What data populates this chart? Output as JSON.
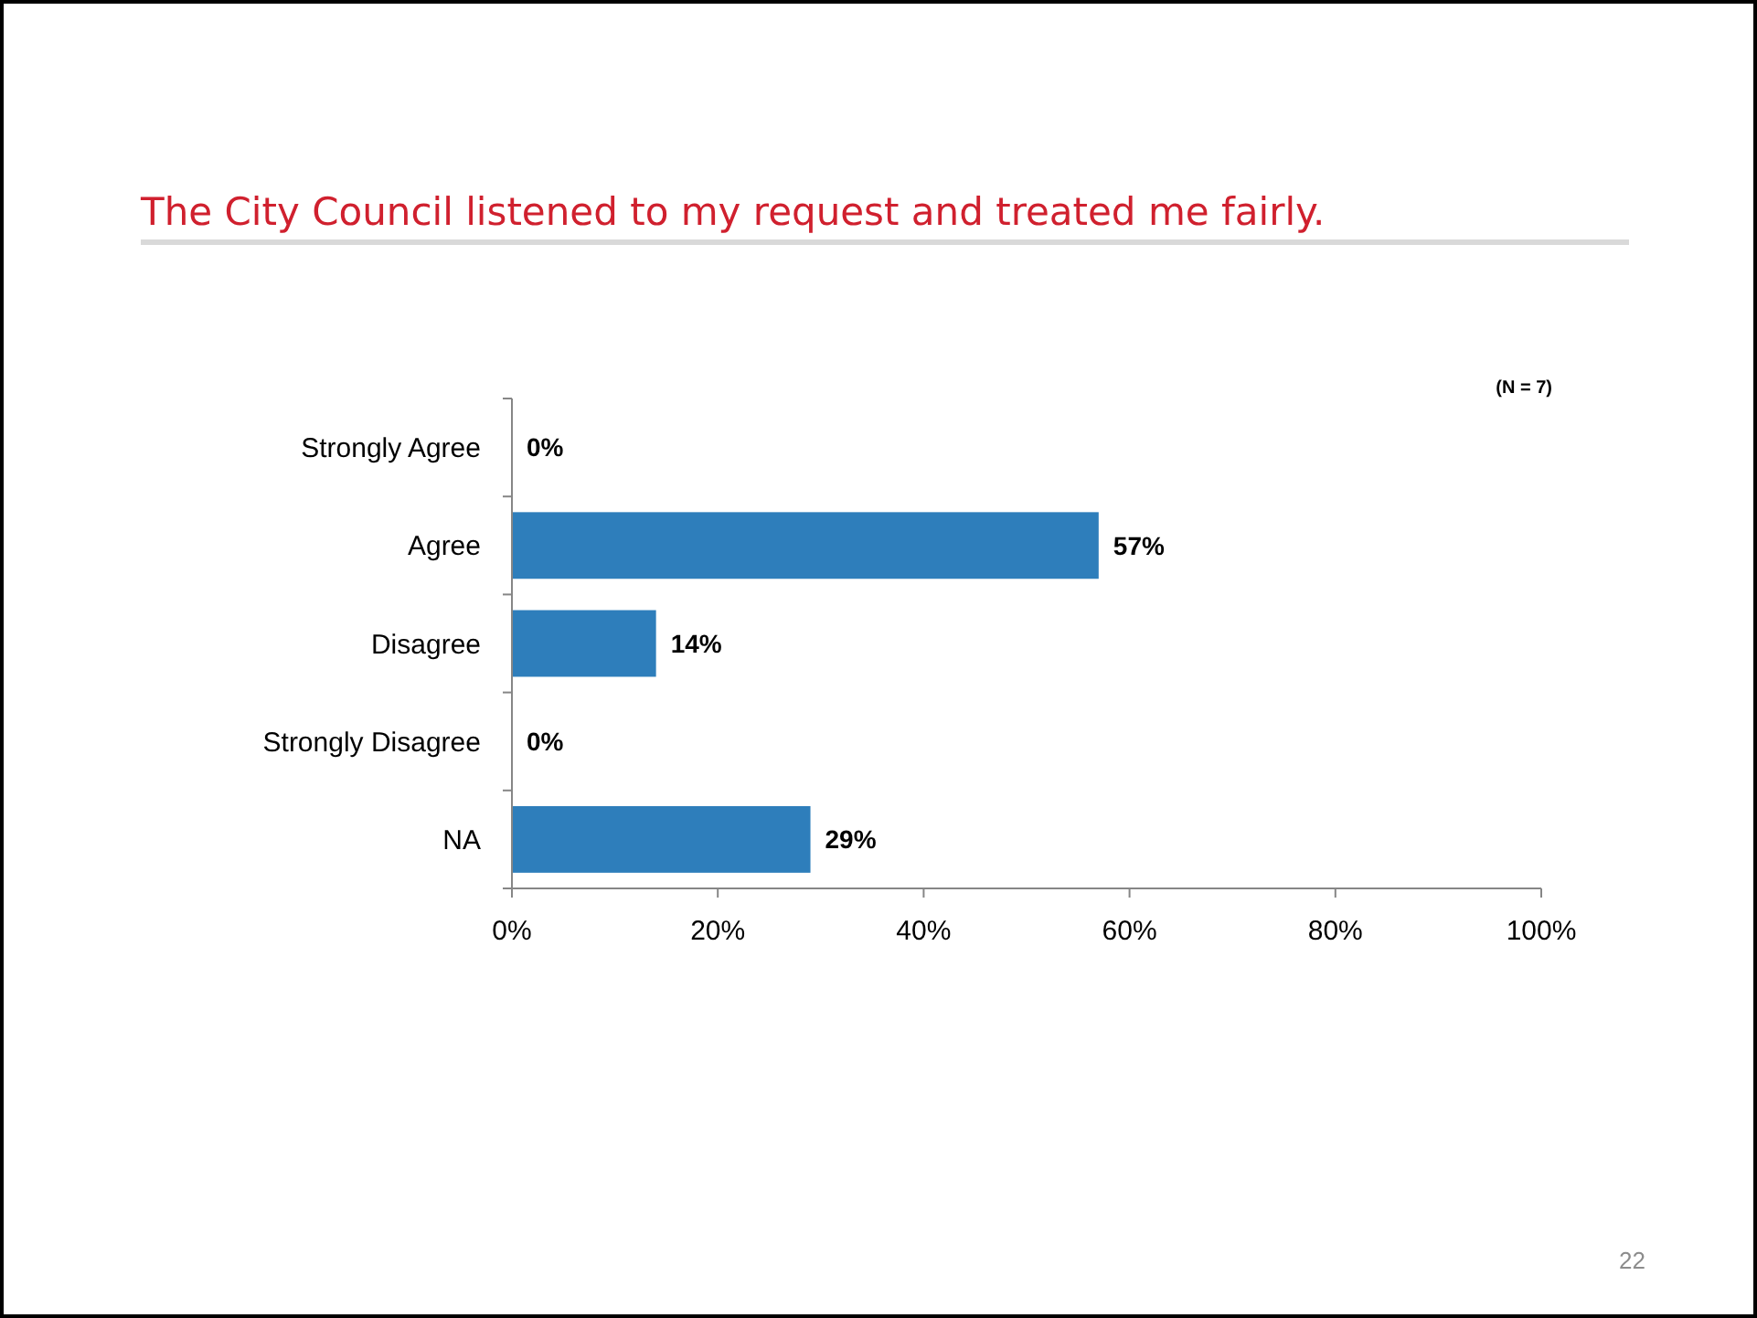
{
  "chart_data": {
    "type": "bar",
    "orientation": "horizontal",
    "title": "The City Council listened to my request and treated me fairly.",
    "categories": [
      "Strongly Agree",
      "Agree",
      "Disagree",
      "Strongly Disagree",
      "NA"
    ],
    "values": [
      0,
      57,
      14,
      0,
      29
    ],
    "color": "#2e7ebb",
    "value_labels": [
      "0%",
      "57%",
      "14%",
      "0%",
      "29%"
    ],
    "xlim": [
      0,
      100
    ],
    "xticks": [
      {
        "value": 0,
        "label": "0%"
      },
      {
        "value": 20,
        "label": "20%"
      },
      {
        "value": 40,
        "label": "40%"
      },
      {
        "value": 60,
        "label": "60%"
      },
      {
        "value": 80,
        "label": "80%"
      },
      {
        "value": 100,
        "label": "100%"
      }
    ],
    "annotations": [
      "(N = 7)",
      "22"
    ]
  }
}
